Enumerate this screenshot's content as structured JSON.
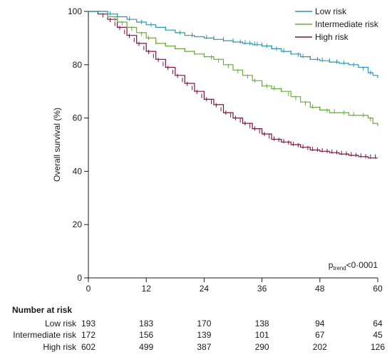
{
  "chart_data": {
    "type": "line",
    "ylabel": "Overall survival (%)",
    "xlabel": "",
    "xlim": [
      0,
      60
    ],
    "ylim": [
      0,
      100
    ],
    "xticks": [
      "0",
      "12",
      "24",
      "36",
      "48",
      "60"
    ],
    "yticks": [
      "0",
      "20",
      "40",
      "60",
      "80",
      "100"
    ],
    "legend_position": "top-right",
    "p_value": {
      "prefix": "p",
      "subscript": "trend",
      "value": "<0·0001"
    },
    "series": [
      {
        "name": "Low risk",
        "color": "#2a97ad",
        "points": [
          [
            0,
            100
          ],
          [
            3,
            100
          ],
          [
            4,
            99
          ],
          [
            6,
            98
          ],
          [
            8,
            97
          ],
          [
            10,
            96
          ],
          [
            12,
            95
          ],
          [
            14,
            94
          ],
          [
            16,
            93
          ],
          [
            18,
            92
          ],
          [
            20,
            91
          ],
          [
            22,
            90.5
          ],
          [
            24,
            90
          ],
          [
            26,
            89.5
          ],
          [
            28,
            89
          ],
          [
            30,
            88.5
          ],
          [
            32,
            88
          ],
          [
            34,
            87.5
          ],
          [
            36,
            87
          ],
          [
            38,
            86
          ],
          [
            40,
            85
          ],
          [
            42,
            84
          ],
          [
            44,
            83
          ],
          [
            46,
            82
          ],
          [
            48,
            81.5
          ],
          [
            50,
            81
          ],
          [
            52,
            80.5
          ],
          [
            54,
            80
          ],
          [
            56,
            79
          ],
          [
            58,
            77
          ],
          [
            59,
            76
          ],
          [
            60,
            75
          ]
        ],
        "censor_x": [
          4.5,
          6,
          8.5,
          11,
          13,
          16,
          19,
          21.5,
          24.5,
          26,
          28,
          30,
          31.5,
          32.5,
          33.5,
          34.5,
          35,
          36,
          37,
          38,
          39,
          40.5,
          42,
          43.5,
          44.5,
          46,
          47.5,
          48.5,
          50,
          51.5,
          53,
          55,
          57,
          58.5
        ]
      },
      {
        "name": "Intermediate risk",
        "color": "#6aaa3c",
        "points": [
          [
            0,
            100
          ],
          [
            3,
            100
          ],
          [
            4,
            98
          ],
          [
            6,
            96
          ],
          [
            8,
            94
          ],
          [
            10,
            92
          ],
          [
            12,
            90
          ],
          [
            14,
            88
          ],
          [
            16,
            87
          ],
          [
            18,
            86
          ],
          [
            20,
            85
          ],
          [
            22,
            84
          ],
          [
            24,
            83
          ],
          [
            26,
            82
          ],
          [
            28,
            80
          ],
          [
            30,
            78
          ],
          [
            32,
            76
          ],
          [
            34,
            74
          ],
          [
            36,
            72
          ],
          [
            38,
            71
          ],
          [
            40,
            70
          ],
          [
            42,
            68
          ],
          [
            44,
            66
          ],
          [
            46,
            64
          ],
          [
            48,
            63
          ],
          [
            50,
            62
          ],
          [
            52,
            62
          ],
          [
            54,
            61
          ],
          [
            56,
            61
          ],
          [
            58,
            60
          ],
          [
            59,
            58
          ],
          [
            60,
            57
          ]
        ],
        "censor_x": [
          4,
          5.5,
          7,
          9,
          11,
          12.5,
          14,
          16,
          18,
          20,
          22,
          24,
          25.5,
          27,
          29,
          31,
          33,
          34.5,
          36,
          37,
          38.5,
          40,
          41.5,
          43,
          45,
          46.5,
          48,
          49.5,
          51,
          53,
          55,
          57,
          58.5
        ]
      },
      {
        "name": "High risk",
        "color": "#7a1040",
        "points": [
          [
            0,
            100
          ],
          [
            2,
            99
          ],
          [
            4,
            97
          ],
          [
            6,
            94
          ],
          [
            8,
            91
          ],
          [
            10,
            88
          ],
          [
            12,
            85
          ],
          [
            14,
            82
          ],
          [
            16,
            79
          ],
          [
            18,
            76
          ],
          [
            20,
            73
          ],
          [
            22,
            70
          ],
          [
            24,
            67
          ],
          [
            26,
            65
          ],
          [
            28,
            62
          ],
          [
            30,
            60
          ],
          [
            32,
            58
          ],
          [
            34,
            56
          ],
          [
            36,
            54
          ],
          [
            38,
            52
          ],
          [
            40,
            51
          ],
          [
            42,
            50
          ],
          [
            44,
            49
          ],
          [
            46,
            48
          ],
          [
            48,
            47.5
          ],
          [
            50,
            47
          ],
          [
            52,
            46.5
          ],
          [
            54,
            46
          ],
          [
            56,
            45.5
          ],
          [
            58,
            45
          ],
          [
            60,
            45
          ]
        ],
        "censor_x": [
          3,
          4.5,
          5.5,
          6.5,
          7.5,
          8.5,
          9.5,
          10.5,
          11.5,
          12.5,
          13.5,
          14.5,
          15.5,
          16.5,
          17.5,
          18.5,
          19.5,
          20.5,
          21.5,
          22.5,
          23.5,
          24.5,
          25.5,
          26.5,
          27.5,
          28.5,
          29.5,
          30.5,
          31.5,
          32.5,
          33.5,
          34.5,
          35.5,
          36.5,
          37.5,
          38.5,
          39.5,
          40.5,
          41.5,
          42.5,
          43.5,
          44.5,
          45.5,
          46.5,
          47.5,
          48.5,
          49.5,
          50.5,
          51.5,
          52.5,
          53.5,
          54.5,
          55.5,
          56.5,
          57.5,
          58.5,
          59.5
        ]
      }
    ],
    "risk_table": {
      "title": "Number at risk",
      "rows": [
        {
          "label": "Low risk",
          "values": [
            "193",
            "183",
            "170",
            "138",
            "94",
            "64"
          ]
        },
        {
          "label": "Intermediate risk",
          "values": [
            "172",
            "156",
            "139",
            "101",
            "67",
            "45"
          ]
        },
        {
          "label": "High risk",
          "values": [
            "602",
            "499",
            "387",
            "290",
            "202",
            "126"
          ]
        }
      ]
    }
  }
}
